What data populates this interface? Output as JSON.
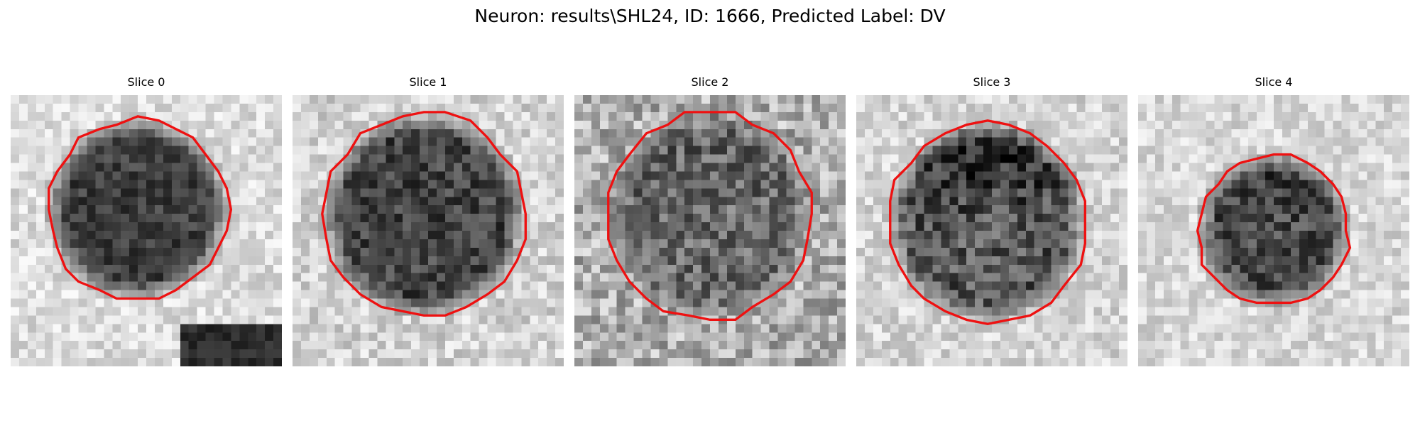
{
  "figure": {
    "title": "Neuron: results\\SHL24, ID: 1666, Predicted Label: DV"
  },
  "panels": [
    {
      "title": "Slice 0",
      "image_name": "neuron-slice-0-grayscale-patch",
      "contour_color": "#ee1111",
      "background": "light",
      "blob": "dark-round-cell-body",
      "extra_dark_region": "bottom-right"
    },
    {
      "title": "Slice 1",
      "image_name": "neuron-slice-1-grayscale-patch",
      "contour_color": "#ee1111",
      "background": "light",
      "blob": "dark-round-cell-body"
    },
    {
      "title": "Slice 2",
      "image_name": "neuron-slice-2-grayscale-patch",
      "contour_color": "#ee1111",
      "background": "mottled",
      "blob": "grey-round-cell-body"
    },
    {
      "title": "Slice 3",
      "image_name": "neuron-slice-3-grayscale-patch",
      "contour_color": "#ee1111",
      "background": "light",
      "blob": "dark-top-round-cell-body"
    },
    {
      "title": "Slice 4",
      "image_name": "neuron-slice-4-grayscale-patch",
      "contour_color": "#ee1111",
      "background": "light",
      "blob": "small-dark-round-cell-body"
    }
  ]
}
